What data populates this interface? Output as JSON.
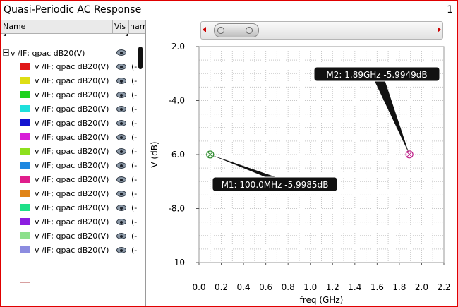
{
  "window": {
    "title": "Quasi-Periodic AC Response",
    "page_number": "1"
  },
  "columns": {
    "name": "Name",
    "vis": "Vis",
    "harm": "harm"
  },
  "tree": {
    "parent_label": "v /IF; qpac dB20(V)",
    "items": [
      {
        "label": "v /IF; qpac dB20(V)",
        "color": "#e01818",
        "harm": "(-"
      },
      {
        "label": "v /IF; qpac dB20(V)",
        "color": "#dede14",
        "harm": "(-"
      },
      {
        "label": "v /IF; qpac dB20(V)",
        "color": "#1ed21e",
        "harm": "(-"
      },
      {
        "label": "v /IF; qpac dB20(V)",
        "color": "#1ee0dc",
        "harm": "(-"
      },
      {
        "label": "v /IF; qpac dB20(V)",
        "color": "#1414d0",
        "harm": "(-"
      },
      {
        "label": "v /IF; qpac dB20(V)",
        "color": "#d81ed8",
        "harm": "(-"
      },
      {
        "label": "v /IF; qpac dB20(V)",
        "color": "#8ee01e",
        "harm": "(-"
      },
      {
        "label": "v /IF; qpac dB20(V)",
        "color": "#1e88e0",
        "harm": "(-"
      },
      {
        "label": "v /IF; qpac dB20(V)",
        "color": "#e01e8c",
        "harm": "(-"
      },
      {
        "label": "v /IF; qpac dB20(V)",
        "color": "#e08418",
        "harm": "(-"
      },
      {
        "label": "v /IF; qpac dB20(V)",
        "color": "#1ee088",
        "harm": "(-"
      },
      {
        "label": "v /IF; qpac dB20(V)",
        "color": "#8c1ee0",
        "harm": "(-"
      },
      {
        "label": "v /IF; qpac dB20(V)",
        "color": "#8ce08c",
        "harm": "(-"
      },
      {
        "label": "v /IF; qpac dB20(V)",
        "color": "#8c8ce0",
        "harm": "(-"
      }
    ]
  },
  "plot": {
    "xlabel": "freq (GHz)",
    "ylabel": "V (dB)",
    "x_ticks": [
      "0.0",
      "0.2",
      "0.4",
      "0.6",
      "0.8",
      "1.0",
      "1.2",
      "1.4",
      "1.6",
      "1.8",
      "2.0",
      "2.2"
    ],
    "y_ticks": [
      "-2.0",
      "-4.0",
      "-6.0",
      "-8.0",
      "-10"
    ],
    "markers": [
      {
        "label": "M1: 100.0MHz -5.9985dB",
        "x": 0.1,
        "y": -5.9985,
        "color": "#2a8a2a"
      },
      {
        "label": "M2: 1.89GHz -5.9949dB",
        "x": 1.89,
        "y": -5.9949,
        "color": "#c0208a"
      }
    ]
  }
}
